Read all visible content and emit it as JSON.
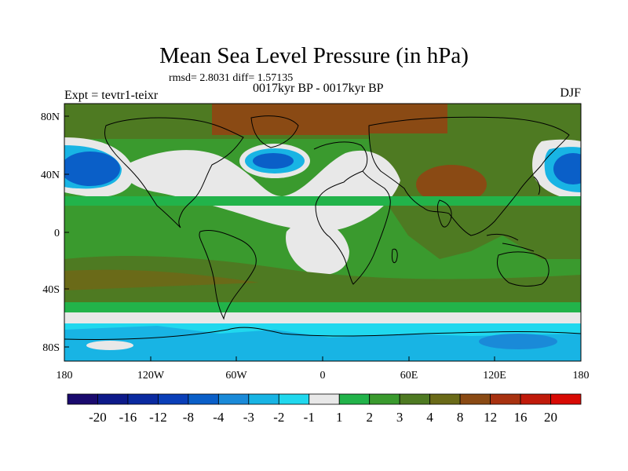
{
  "title": "Mean Sea Level Pressure (in hPa)",
  "stats": "rmsd= 2.8031 diff= 1.57135",
  "expt": "Expt = tevtr1-teixr",
  "period": "0017kyr BP - 0017kyr BP",
  "season": "DJF",
  "map": {
    "lat_labels": [
      "80N",
      "40N",
      "0",
      "40S",
      "80S"
    ],
    "lon_labels": [
      "180",
      "120W",
      "60W",
      "0",
      "60E",
      "120E",
      "180"
    ]
  },
  "colorbar": {
    "labels": [
      "-20",
      "-16",
      "-12",
      "-8",
      "-4",
      "-3",
      "-2",
      "-1",
      "1",
      "2",
      "3",
      "4",
      "8",
      "12",
      "16",
      "20"
    ],
    "colors": [
      "#1a0a6e",
      "#0d1a8a",
      "#0a2aa0",
      "#0a3fb8",
      "#0a5fc8",
      "#1a8ad8",
      "#18b4e4",
      "#20d8ee",
      "#e8e8e8",
      "#22b34a",
      "#3a9a2e",
      "#4e7a22",
      "#6a6a18",
      "#8a4a14",
      "#a83210",
      "#c01a0a",
      "#d80a04"
    ]
  },
  "colors": {
    "land_outline": "#000000",
    "ocean_green": "#3a9a2e",
    "ocean_brown": "#4e7a22"
  }
}
